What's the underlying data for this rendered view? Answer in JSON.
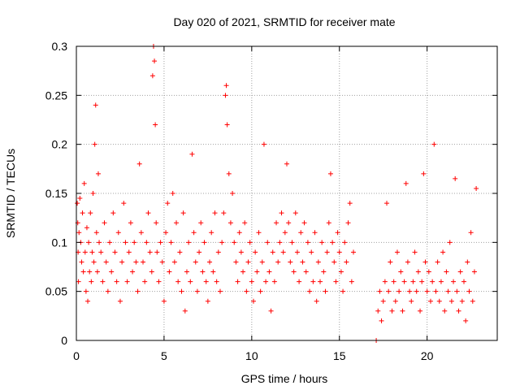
{
  "chart_data": {
    "type": "scatter",
    "title": "Day 020 of 2021, SRMTID for receiver mate",
    "xlabel": "GPS time / hours",
    "ylabel": "SRMTID / TECUs",
    "xlim": [
      0,
      24
    ],
    "ylim": [
      0,
      0.3
    ],
    "xticks": [
      0,
      5,
      10,
      15,
      20
    ],
    "xtick_labels": [
      "0",
      "5",
      "10",
      "15",
      "20"
    ],
    "yticks": [
      0,
      0.05,
      0.1,
      0.15,
      0.2,
      0.25,
      0.3
    ],
    "ytick_labels": [
      "0",
      "0.05",
      "0.1",
      "0.15",
      "0.2",
      "0.25",
      "0.3"
    ],
    "grid": true,
    "marker": "+",
    "color": "#ff0000",
    "series": [
      {
        "name": "SRMTID",
        "points": [
          [
            0.05,
            0.14
          ],
          [
            0.08,
            0.12
          ],
          [
            0.1,
            0.09
          ],
          [
            0.12,
            0.06
          ],
          [
            0.15,
            0.11
          ],
          [
            0.2,
            0.145
          ],
          [
            0.25,
            0.1
          ],
          [
            0.3,
            0.08
          ],
          [
            0.35,
            0.13
          ],
          [
            0.4,
            0.07
          ],
          [
            0.45,
            0.16
          ],
          [
            0.5,
            0.09
          ],
          [
            0.55,
            0.05
          ],
          [
            0.6,
            0.115
          ],
          [
            0.65,
            0.04
          ],
          [
            0.7,
            0.1
          ],
          [
            0.75,
            0.07
          ],
          [
            0.8,
            0.13
          ],
          [
            0.85,
            0.06
          ],
          [
            0.9,
            0.09
          ],
          [
            0.95,
            0.15
          ],
          [
            1.0,
            0.08
          ],
          [
            1.05,
            0.2
          ],
          [
            1.1,
            0.24
          ],
          [
            1.15,
            0.11
          ],
          [
            1.2,
            0.07
          ],
          [
            1.25,
            0.17
          ],
          [
            1.3,
            0.1
          ],
          [
            1.4,
            0.09
          ],
          [
            1.5,
            0.06
          ],
          [
            1.6,
            0.12
          ],
          [
            1.7,
            0.08
          ],
          [
            1.8,
            0.05
          ],
          [
            1.9,
            0.1
          ],
          [
            2.0,
            0.07
          ],
          [
            2.1,
            0.13
          ],
          [
            2.2,
            0.09
          ],
          [
            2.3,
            0.06
          ],
          [
            2.4,
            0.11
          ],
          [
            2.5,
            0.04
          ],
          [
            2.6,
            0.08
          ],
          [
            2.7,
            0.14
          ],
          [
            2.8,
            0.1
          ],
          [
            2.9,
            0.06
          ],
          [
            3.0,
            0.09
          ],
          [
            3.1,
            0.12
          ],
          [
            3.2,
            0.07
          ],
          [
            3.3,
            0.1
          ],
          [
            3.4,
            0.08
          ],
          [
            3.5,
            0.05
          ],
          [
            3.6,
            0.18
          ],
          [
            3.7,
            0.11
          ],
          [
            3.8,
            0.08
          ],
          [
            3.9,
            0.06
          ],
          [
            4.0,
            0.1
          ],
          [
            4.1,
            0.13
          ],
          [
            4.2,
            0.09
          ],
          [
            4.3,
            0.07
          ],
          [
            4.35,
            0.27
          ],
          [
            4.4,
            0.3
          ],
          [
            4.45,
            0.285
          ],
          [
            4.5,
            0.22
          ],
          [
            4.55,
            0.12
          ],
          [
            4.6,
            0.09
          ],
          [
            4.7,
            0.06
          ],
          [
            4.8,
            0.1
          ],
          [
            4.9,
            0.08
          ],
          [
            5.0,
            0.04
          ],
          [
            5.1,
            0.11
          ],
          [
            5.2,
            0.14
          ],
          [
            5.3,
            0.07
          ],
          [
            5.4,
            0.1
          ],
          [
            5.5,
            0.15
          ],
          [
            5.6,
            0.08
          ],
          [
            5.7,
            0.12
          ],
          [
            5.8,
            0.06
          ],
          [
            5.9,
            0.09
          ],
          [
            6.0,
            0.05
          ],
          [
            6.1,
            0.13
          ],
          [
            6.2,
            0.03
          ],
          [
            6.3,
            0.07
          ],
          [
            6.4,
            0.1
          ],
          [
            6.5,
            0.06
          ],
          [
            6.6,
            0.19
          ],
          [
            6.7,
            0.11
          ],
          [
            6.8,
            0.08
          ],
          [
            6.9,
            0.05
          ],
          [
            7.0,
            0.09
          ],
          [
            7.1,
            0.12
          ],
          [
            7.2,
            0.07
          ],
          [
            7.3,
            0.1
          ],
          [
            7.4,
            0.06
          ],
          [
            7.5,
            0.04
          ],
          [
            7.6,
            0.08
          ],
          [
            7.7,
            0.11
          ],
          [
            7.8,
            0.07
          ],
          [
            7.9,
            0.13
          ],
          [
            8.0,
            0.06
          ],
          [
            8.1,
            0.09
          ],
          [
            8.2,
            0.05
          ],
          [
            8.3,
            0.1
          ],
          [
            8.4,
            0.13
          ],
          [
            8.5,
            0.25
          ],
          [
            8.55,
            0.26
          ],
          [
            8.6,
            0.22
          ],
          [
            8.7,
            0.17
          ],
          [
            8.8,
            0.12
          ],
          [
            8.9,
            0.15
          ],
          [
            9.0,
            0.1
          ],
          [
            9.1,
            0.08
          ],
          [
            9.2,
            0.06
          ],
          [
            9.3,
            0.11
          ],
          [
            9.4,
            0.09
          ],
          [
            9.5,
            0.07
          ],
          [
            9.6,
            0.12
          ],
          [
            9.7,
            0.05
          ],
          [
            9.8,
            0.08
          ],
          [
            9.9,
            0.1
          ],
          [
            10.0,
            0.06
          ],
          [
            10.1,
            0.04
          ],
          [
            10.2,
            0.09
          ],
          [
            10.3,
            0.07
          ],
          [
            10.4,
            0.11
          ],
          [
            10.5,
            0.05
          ],
          [
            10.6,
            0.08
          ],
          [
            10.7,
            0.2
          ],
          [
            10.8,
            0.06
          ],
          [
            10.9,
            0.1
          ],
          [
            11.0,
            0.07
          ],
          [
            11.1,
            0.03
          ],
          [
            11.2,
            0.09
          ],
          [
            11.3,
            0.06
          ],
          [
            11.4,
            0.12
          ],
          [
            11.5,
            0.08
          ],
          [
            11.6,
            0.1
          ],
          [
            11.7,
            0.13
          ],
          [
            11.8,
            0.09
          ],
          [
            11.9,
            0.11
          ],
          [
            12.0,
            0.18
          ],
          [
            12.1,
            0.12
          ],
          [
            12.2,
            0.08
          ],
          [
            12.3,
            0.1
          ],
          [
            12.4,
            0.07
          ],
          [
            12.5,
            0.13
          ],
          [
            12.6,
            0.09
          ],
          [
            12.7,
            0.06
          ],
          [
            12.8,
            0.11
          ],
          [
            12.9,
            0.08
          ],
          [
            13.0,
            0.12
          ],
          [
            13.1,
            0.07
          ],
          [
            13.2,
            0.1
          ],
          [
            13.3,
            0.05
          ],
          [
            13.4,
            0.09
          ],
          [
            13.5,
            0.06
          ],
          [
            13.6,
            0.11
          ],
          [
            13.7,
            0.04
          ],
          [
            13.8,
            0.08
          ],
          [
            13.9,
            0.06
          ],
          [
            14.0,
            0.1
          ],
          [
            14.1,
            0.07
          ],
          [
            14.2,
            0.05
          ],
          [
            14.3,
            0.09
          ],
          [
            14.4,
            0.12
          ],
          [
            14.5,
            0.17
          ],
          [
            14.6,
            0.1
          ],
          [
            14.7,
            0.08
          ],
          [
            14.8,
            0.06
          ],
          [
            14.9,
            0.11
          ],
          [
            15.0,
            0.09
          ],
          [
            15.1,
            0.07
          ],
          [
            15.2,
            0.05
          ],
          [
            15.3,
            0.1
          ],
          [
            15.4,
            0.08
          ],
          [
            15.5,
            0.12
          ],
          [
            15.6,
            0.14
          ],
          [
            15.7,
            0.06
          ],
          [
            15.8,
            0.09
          ],
          [
            17.1,
            0.0
          ],
          [
            17.2,
            0.03
          ],
          [
            17.3,
            0.05
          ],
          [
            17.4,
            0.02
          ],
          [
            17.5,
            0.04
          ],
          [
            17.6,
            0.06
          ],
          [
            17.7,
            0.14
          ],
          [
            17.8,
            0.05
          ],
          [
            17.9,
            0.08
          ],
          [
            18.0,
            0.03
          ],
          [
            18.1,
            0.06
          ],
          [
            18.2,
            0.04
          ],
          [
            18.3,
            0.09
          ],
          [
            18.4,
            0.05
          ],
          [
            18.5,
            0.07
          ],
          [
            18.6,
            0.03
          ],
          [
            18.7,
            0.06
          ],
          [
            18.8,
            0.16
          ],
          [
            18.9,
            0.08
          ],
          [
            19.0,
            0.05
          ],
          [
            19.1,
            0.04
          ],
          [
            19.2,
            0.06
          ],
          [
            19.3,
            0.09
          ],
          [
            19.4,
            0.05
          ],
          [
            19.5,
            0.07
          ],
          [
            19.6,
            0.03
          ],
          [
            19.7,
            0.06
          ],
          [
            19.8,
            0.17
          ],
          [
            19.9,
            0.08
          ],
          [
            20.0,
            0.05
          ],
          [
            20.1,
            0.07
          ],
          [
            20.2,
            0.04
          ],
          [
            20.3,
            0.06
          ],
          [
            20.4,
            0.2
          ],
          [
            20.5,
            0.05
          ],
          [
            20.6,
            0.08
          ],
          [
            20.7,
            0.04
          ],
          [
            20.8,
            0.06
          ],
          [
            20.9,
            0.09
          ],
          [
            21.0,
            0.03
          ],
          [
            21.1,
            0.07
          ],
          [
            21.2,
            0.05
          ],
          [
            21.3,
            0.1
          ],
          [
            21.4,
            0.04
          ],
          [
            21.5,
            0.06
          ],
          [
            21.6,
            0.165
          ],
          [
            21.7,
            0.05
          ],
          [
            21.8,
            0.03
          ],
          [
            21.9,
            0.07
          ],
          [
            22.0,
            0.04
          ],
          [
            22.1,
            0.06
          ],
          [
            22.2,
            0.02
          ],
          [
            22.3,
            0.08
          ],
          [
            22.4,
            0.05
          ],
          [
            22.5,
            0.11
          ],
          [
            22.6,
            0.04
          ],
          [
            22.7,
            0.07
          ],
          [
            22.8,
            0.155
          ]
        ]
      }
    ]
  }
}
